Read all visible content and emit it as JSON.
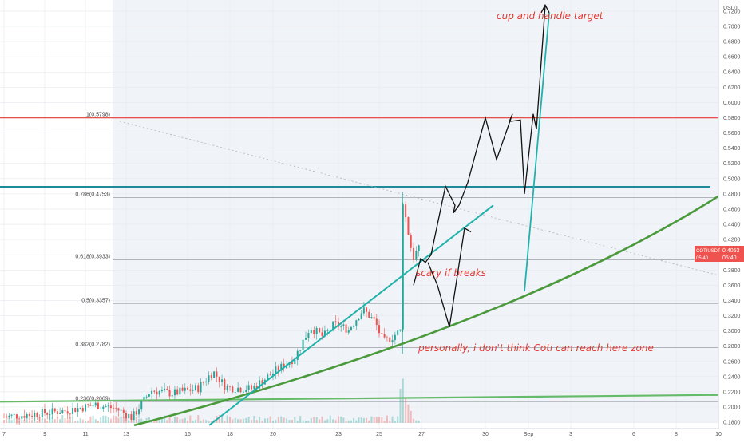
{
  "chart_data": {
    "type": "line",
    "symbol": "COTIUSDT",
    "currency_label": "USDT",
    "price_tag": {
      "symbol": "COTIUSDT",
      "price": "0.4053",
      "timer": "05:40",
      "value": 0.4053
    },
    "ylim": [
      0.176,
      0.718
    ],
    "y_ticks": [
      "0.1800",
      "0.2000",
      "0.2200",
      "0.2400",
      "0.2600",
      "0.2800",
      "0.3000",
      "0.3200",
      "0.3400",
      "0.3600",
      "0.3800",
      "0.4000",
      "0.4200",
      "0.4400",
      "0.4600",
      "0.4800",
      "0.5000",
      "0.5200",
      "0.5400",
      "0.5600",
      "0.5800",
      "0.6000",
      "0.6200",
      "0.6400",
      "0.6600",
      "0.6800",
      "0.7000",
      "0.7200"
    ],
    "x_ticks": [
      "7",
      "9",
      "11",
      "13",
      "16",
      "18",
      "20",
      "23",
      "25",
      "27",
      "30",
      "Sep",
      "3",
      "6",
      "8",
      "10"
    ],
    "x_tick_days": [
      7,
      9,
      11,
      13,
      16,
      18,
      20,
      23,
      25,
      27,
      30,
      32,
      34,
      37,
      39,
      41
    ],
    "fib_levels": [
      {
        "label": "1(0.5798)",
        "value": 0.5798
      },
      {
        "label": "0.786(0.4753)",
        "value": 0.4753
      },
      {
        "label": "0.618(0.3933)",
        "value": 0.3933
      },
      {
        "label": "0.5(0.3357)",
        "value": 0.3357
      },
      {
        "label": "0.382(0.2782)",
        "value": 0.2782
      },
      {
        "label": "0.236(0.2069)",
        "value": 0.2069
      }
    ],
    "horizontal_level": 0.489,
    "annotations": [
      "cup and handle target",
      "scary if breaks",
      "personally, i don't think Coti can reach here zone"
    ],
    "colors": {
      "up": "#26a69a",
      "down": "#ef5350",
      "fib_top": "#e53935",
      "level": "#1e8a9a",
      "trend": "#20b2aa",
      "curve": "#4a9a3c",
      "flat": "#66bb6a",
      "projection": "#111111",
      "tag": "#ef5350",
      "annotation": "#e53935"
    }
  }
}
